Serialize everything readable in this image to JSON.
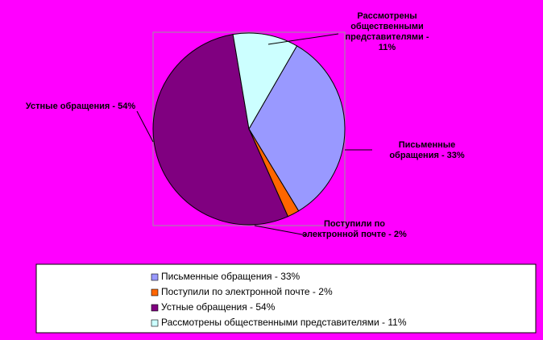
{
  "chart_data": {
    "type": "pie",
    "categories": [
      "Письменные обращения - 33%",
      "Поступили по электронной почте - 2%",
      "Устные обращения - 54%",
      "Рассмотрены общественными представителями - 11%"
    ],
    "values": [
      33,
      2,
      54,
      11
    ],
    "colors": [
      "#9999ff",
      "#ff6600",
      "#800080",
      "#ccffff"
    ]
  }
}
